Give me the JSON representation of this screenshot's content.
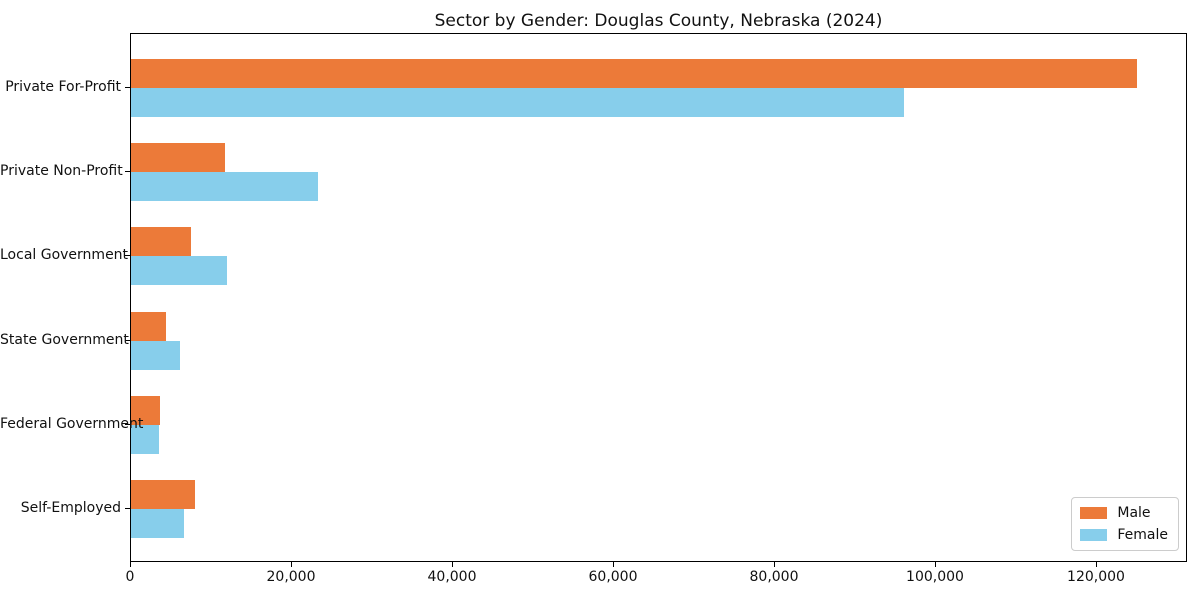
{
  "chart_data": {
    "type": "bar",
    "orientation": "horizontal",
    "title": "Sector by Gender: Douglas County, Nebraska (2024)",
    "categories": [
      "Private For-Profit",
      "Private Non-Profit",
      "Local Government",
      "State Government",
      "Federal Government",
      "Self-Employed"
    ],
    "series": [
      {
        "name": "Male",
        "color": "#ec7a39",
        "values": [
          125000,
          11700,
          7450,
          4400,
          3600,
          7950
        ]
      },
      {
        "name": "Female",
        "color": "#87ceeb",
        "values": [
          96000,
          23200,
          11900,
          6100,
          3500,
          6550
        ]
      }
    ],
    "xlabel": "",
    "ylabel": "",
    "xlim": [
      0,
      131300
    ],
    "x_ticks": [
      0,
      20000,
      40000,
      60000,
      80000,
      100000,
      120000
    ],
    "x_tick_labels": [
      "0",
      "20,000",
      "40,000",
      "60,000",
      "80,000",
      "100,000",
      "120,000"
    ],
    "grid": false,
    "legend_position": "lower right"
  }
}
